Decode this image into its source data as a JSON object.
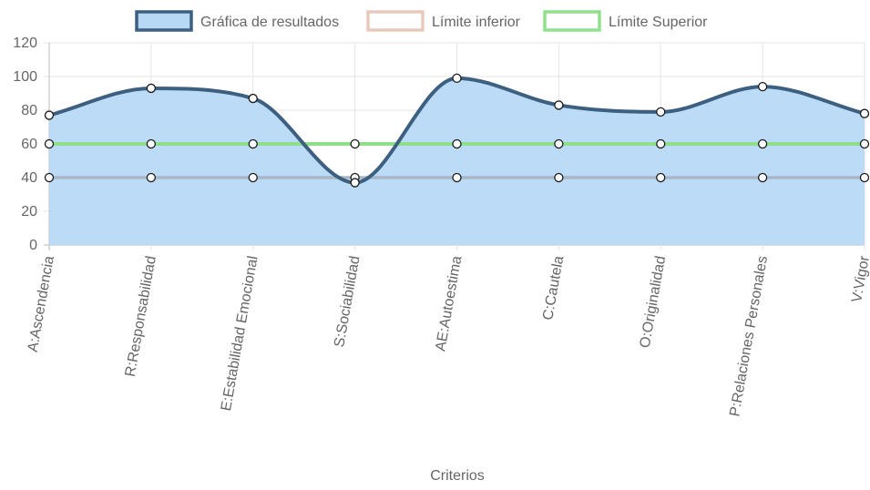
{
  "chart_data": {
    "type": "line",
    "xlabel": "Criterios",
    "ylabel": "",
    "ylim": [
      0,
      120
    ],
    "yticks": [
      0,
      20,
      40,
      60,
      80,
      100,
      120
    ],
    "grid": true,
    "legend_position": "top",
    "categories": [
      "A:Ascendencia",
      "R:Responsabilidad",
      "E:Estabilidad Emocional",
      "S:Sociabilidad",
      "AE:Autoestima",
      "C:Cautela",
      "O:Originalidad",
      "P:Relaciones Personales",
      "V:Vigor"
    ],
    "series": [
      {
        "name": "Gráfica de resultados",
        "values": [
          77,
          93,
          87,
          37,
          99,
          83,
          79,
          94,
          78
        ],
        "color": "#3d5f80",
        "fill": "#b8d9f6"
      },
      {
        "name": "Límite inferior",
        "values": [
          40,
          40,
          40,
          40,
          40,
          40,
          40,
          40,
          40
        ],
        "color": "#e8cabd",
        "fill": "#e8cabd"
      },
      {
        "name": "Límite Superior",
        "values": [
          60,
          60,
          60,
          60,
          60,
          60,
          60,
          60,
          60
        ],
        "color": "#90e08c",
        "fill": "#90e08c"
      }
    ]
  }
}
